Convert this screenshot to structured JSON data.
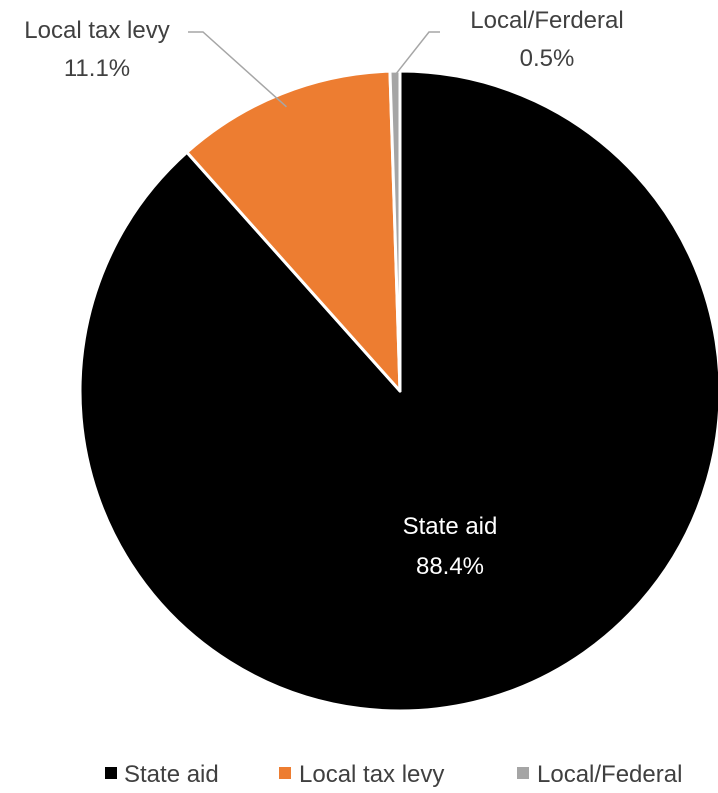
{
  "chart_data": {
    "type": "pie",
    "title": "",
    "slices": [
      {
        "label": "State aid",
        "value": 88.4,
        "value_label": "88.4%",
        "color": "#000000",
        "data_label": "State aid"
      },
      {
        "label": "Local tax levy",
        "value": 11.1,
        "value_label": "11.1%",
        "color": "#ED7D31",
        "data_label": "Local tax levy"
      },
      {
        "label": "Local/Federal",
        "value": 0.5,
        "value_label": "0.5%",
        "color": "#A5A5A5",
        "data_label": "Local/Ferderal"
      }
    ],
    "start_angle": "12 o'clock",
    "direction": "clockwise",
    "legend": {
      "placement": "bottom",
      "entries": [
        "State aid",
        "Local tax levy",
        "Local/Federal"
      ]
    }
  }
}
